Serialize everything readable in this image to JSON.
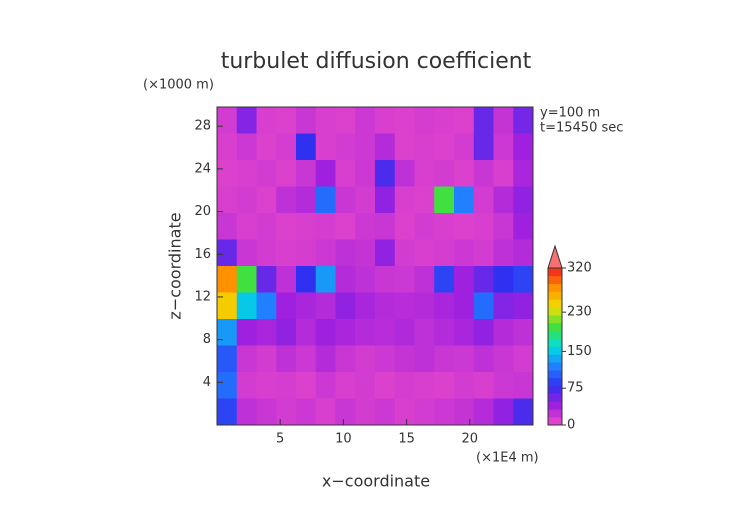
{
  "chart_data": {
    "type": "heatmap",
    "title": "turbulet diffusion coefficient",
    "x_label": "x−coordinate",
    "y_label": "z−coordinate",
    "y_unit": "(×1000 m)",
    "x_unit": "(×1E4 m)",
    "annotations": [
      "y=100 m",
      "t=15450 sec"
    ],
    "xlim": [
      0,
      25
    ],
    "xticks": [
      5,
      10,
      15,
      20
    ],
    "ylim": [
      0,
      29.8
    ],
    "yticks": [
      4,
      8,
      12,
      16,
      20,
      24,
      28
    ],
    "clim": [
      0,
      320
    ],
    "cticks": [
      0,
      75,
      150,
      230,
      320
    ],
    "extend": "max",
    "colorscale": [
      "#f04cc8",
      "#a020e0",
      "#3030f0",
      "#2080ff",
      "#00e0e0",
      "#40e040",
      "#f0e000",
      "#ff9000",
      "#f02020"
    ],
    "z": [
      [
        15,
        50,
        12,
        10,
        20,
        12,
        10,
        18,
        12,
        10,
        14,
        12,
        10,
        60,
        22,
        55
      ],
      [
        12,
        18,
        10,
        14,
        80,
        12,
        15,
        18,
        30,
        10,
        12,
        10,
        15,
        60,
        18,
        40
      ],
      [
        10,
        12,
        15,
        10,
        20,
        40,
        12,
        18,
        70,
        25,
        12,
        15,
        10,
        20,
        12,
        35
      ],
      [
        12,
        15,
        10,
        25,
        30,
        110,
        20,
        15,
        45,
        12,
        10,
        200,
        120,
        15,
        30,
        45
      ],
      [
        20,
        12,
        15,
        10,
        12,
        14,
        10,
        18,
        20,
        10,
        15,
        12,
        10,
        12,
        20,
        40
      ],
      [
        60,
        20,
        15,
        12,
        14,
        18,
        25,
        22,
        45,
        15,
        12,
        14,
        18,
        15,
        25,
        30
      ],
      [
        280,
        200,
        60,
        25,
        80,
        130,
        30,
        25,
        20,
        18,
        25,
        90,
        40,
        60,
        80,
        90
      ],
      [
        250,
        150,
        120,
        40,
        35,
        30,
        45,
        35,
        30,
        28,
        30,
        35,
        40,
        110,
        50,
        45
      ],
      [
        130,
        40,
        35,
        45,
        30,
        40,
        35,
        30,
        28,
        32,
        25,
        30,
        35,
        45,
        30,
        25
      ],
      [
        100,
        20,
        15,
        25,
        18,
        30,
        20,
        15,
        18,
        22,
        25,
        20,
        18,
        25,
        20,
        15
      ],
      [
        110,
        15,
        12,
        14,
        10,
        18,
        12,
        15,
        10,
        14,
        12,
        10,
        15,
        12,
        18,
        20
      ],
      [
        90,
        25,
        20,
        15,
        18,
        12,
        20,
        15,
        18,
        12,
        15,
        18,
        22,
        30,
        45,
        70
      ]
    ]
  }
}
